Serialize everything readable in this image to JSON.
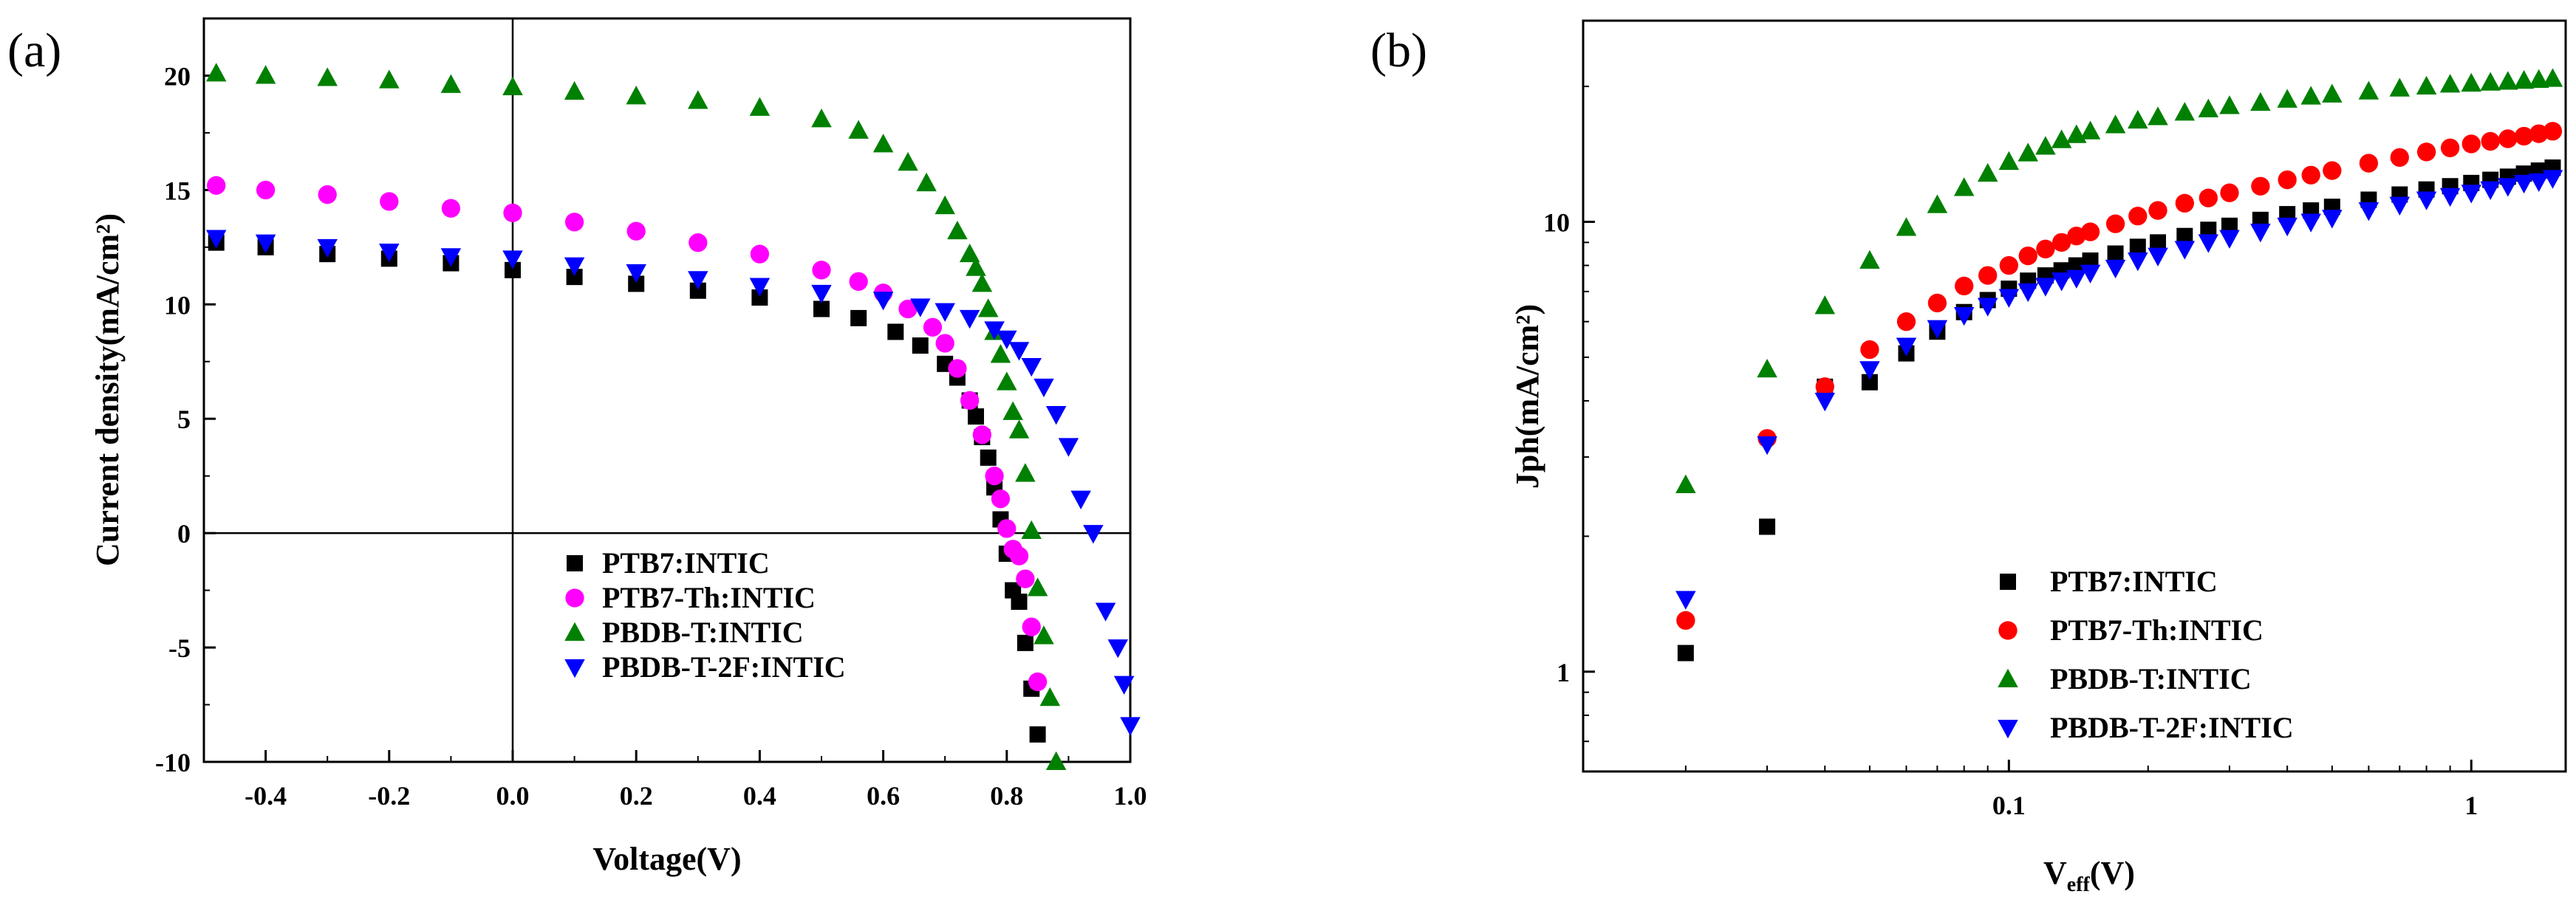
{
  "chart_data": [
    {
      "id": "a",
      "panel_label": "(a)",
      "type": "scatter",
      "xlabel": "Voltage(V)",
      "ylabel": "Current density(mA/cm²)",
      "xlim": [
        -0.5,
        1.0
      ],
      "ylim": [
        -10,
        22.5
      ],
      "xscale": "linear",
      "yscale": "linear",
      "xticks": [
        -0.4,
        -0.2,
        0.0,
        0.2,
        0.4,
        0.6,
        0.8,
        1.0
      ],
      "xticklabels": [
        "-0.4",
        "-0.2",
        "0.0",
        "0.2",
        "0.4",
        "0.6",
        "0.8",
        "1.0"
      ],
      "yticks": [
        -10,
        -5,
        0,
        5,
        10,
        15,
        20
      ],
      "yticklabels": [
        "-10",
        "-5",
        "0",
        "5",
        "10",
        "15",
        "20"
      ],
      "reference_lines": {
        "x": 0,
        "y": 0
      },
      "legend_position": "lower-right",
      "series": [
        {
          "name": "PTB7:INTIC",
          "marker": "square",
          "color": "#000000",
          "x": [
            -0.48,
            -0.4,
            -0.3,
            -0.2,
            -0.1,
            0.0,
            0.1,
            0.2,
            0.3,
            0.4,
            0.5,
            0.56,
            0.62,
            0.66,
            0.7,
            0.72,
            0.74,
            0.75,
            0.76,
            0.77,
            0.78,
            0.79,
            0.8,
            0.81,
            0.82,
            0.83,
            0.84,
            0.85
          ],
          "y": [
            12.7,
            12.5,
            12.2,
            12.0,
            11.8,
            11.5,
            11.2,
            10.9,
            10.6,
            10.3,
            9.8,
            9.4,
            8.8,
            8.2,
            7.4,
            6.8,
            5.8,
            5.1,
            4.2,
            3.3,
            2.0,
            0.6,
            -0.9,
            -2.5,
            -3.0,
            -4.8,
            -6.8,
            -8.8
          ]
        },
        {
          "name": "PTB7-Th:INTIC",
          "marker": "circle",
          "color": "#ff00ff",
          "x": [
            -0.48,
            -0.4,
            -0.3,
            -0.2,
            -0.1,
            0.0,
            0.1,
            0.2,
            0.3,
            0.4,
            0.5,
            0.56,
            0.6,
            0.64,
            0.68,
            0.7,
            0.72,
            0.74,
            0.76,
            0.78,
            0.79,
            0.8,
            0.81,
            0.82,
            0.83,
            0.84,
            0.85
          ],
          "y": [
            15.2,
            15.0,
            14.8,
            14.5,
            14.2,
            14.0,
            13.6,
            13.2,
            12.7,
            12.2,
            11.5,
            11.0,
            10.5,
            9.8,
            9.0,
            8.3,
            7.2,
            5.8,
            4.3,
            2.5,
            1.5,
            0.2,
            -0.7,
            -1.0,
            -2.0,
            -4.1,
            -6.5
          ]
        },
        {
          "name": "PBDB-T:INTIC",
          "marker": "triangle-up",
          "color": "#008000",
          "x": [
            -0.48,
            -0.4,
            -0.3,
            -0.2,
            -0.1,
            0.0,
            0.1,
            0.2,
            0.3,
            0.4,
            0.5,
            0.56,
            0.6,
            0.64,
            0.67,
            0.7,
            0.72,
            0.74,
            0.75,
            0.76,
            0.77,
            0.78,
            0.79,
            0.8,
            0.81,
            0.82,
            0.83,
            0.84,
            0.85,
            0.86,
            0.87,
            0.88
          ],
          "y": [
            20.1,
            20.0,
            19.9,
            19.8,
            19.6,
            19.5,
            19.3,
            19.1,
            18.9,
            18.6,
            18.1,
            17.6,
            17.0,
            16.2,
            15.3,
            14.3,
            13.2,
            12.2,
            11.6,
            10.9,
            9.8,
            8.8,
            7.8,
            6.6,
            5.3,
            4.5,
            2.6,
            0.1,
            -2.4,
            -4.5,
            -7.2,
            -10.0
          ]
        },
        {
          "name": "PBDB-T-2F:INTIC",
          "marker": "triangle-down",
          "color": "#0000ff",
          "x": [
            -0.48,
            -0.4,
            -0.3,
            -0.2,
            -0.1,
            0.0,
            0.1,
            0.2,
            0.3,
            0.4,
            0.5,
            0.6,
            0.66,
            0.7,
            0.74,
            0.78,
            0.8,
            0.82,
            0.84,
            0.86,
            0.88,
            0.9,
            0.92,
            0.94,
            0.96,
            0.98,
            0.99,
            1.0
          ],
          "y": [
            12.9,
            12.7,
            12.5,
            12.3,
            12.1,
            12.0,
            11.7,
            11.4,
            11.1,
            10.8,
            10.5,
            10.2,
            9.9,
            9.7,
            9.4,
            8.9,
            8.5,
            8.0,
            7.3,
            6.4,
            5.2,
            3.8,
            1.5,
            0.0,
            -3.4,
            -5.0,
            -6.6,
            -8.4
          ]
        }
      ]
    },
    {
      "id": "b",
      "panel_label": "(b)",
      "type": "scatter",
      "xlabel": "V_eff(V)",
      "ylabel": "Jph(mA/cm²)",
      "xlim": [
        0.012,
        1.6
      ],
      "ylim": [
        0.6,
        28
      ],
      "xscale": "log",
      "yscale": "log",
      "xticks": [
        0.1,
        1
      ],
      "xticklabels": [
        "0.1",
        "1"
      ],
      "yticks": [
        1,
        10
      ],
      "yticklabels": [
        "1",
        "10"
      ],
      "legend_position": "lower-right",
      "series": [
        {
          "name": "PTB7:INTIC",
          "marker": "square",
          "color": "#000000",
          "x": [
            0.02,
            0.03,
            0.04,
            0.05,
            0.06,
            0.07,
            0.08,
            0.09,
            0.1,
            0.11,
            0.12,
            0.13,
            0.14,
            0.15,
            0.17,
            0.19,
            0.21,
            0.24,
            0.27,
            0.3,
            0.35,
            0.4,
            0.45,
            0.5,
            0.6,
            0.7,
            0.8,
            0.9,
            1.0,
            1.1,
            1.2,
            1.3,
            1.4,
            1.5
          ],
          "y": [
            1.1,
            2.1,
            4.3,
            4.4,
            5.1,
            5.7,
            6.3,
            6.7,
            7.1,
            7.4,
            7.6,
            7.8,
            8.0,
            8.2,
            8.5,
            8.8,
            9.0,
            9.3,
            9.6,
            9.8,
            10.1,
            10.4,
            10.6,
            10.8,
            11.2,
            11.5,
            11.8,
            12.0,
            12.2,
            12.4,
            12.6,
            12.8,
            13.0,
            13.2
          ]
        },
        {
          "name": "PTB7-Th:INTIC",
          "marker": "circle",
          "color": "#ff0000",
          "x": [
            0.02,
            0.03,
            0.04,
            0.05,
            0.06,
            0.07,
            0.08,
            0.09,
            0.1,
            0.11,
            0.12,
            0.13,
            0.14,
            0.15,
            0.17,
            0.19,
            0.21,
            0.24,
            0.27,
            0.3,
            0.35,
            0.4,
            0.45,
            0.5,
            0.6,
            0.7,
            0.8,
            0.9,
            1.0,
            1.1,
            1.2,
            1.3,
            1.4,
            1.5
          ],
          "y": [
            1.3,
            3.3,
            4.3,
            5.2,
            6.0,
            6.6,
            7.2,
            7.6,
            8.0,
            8.4,
            8.7,
            9.0,
            9.3,
            9.5,
            9.9,
            10.3,
            10.6,
            11.0,
            11.3,
            11.6,
            12.0,
            12.4,
            12.7,
            13.0,
            13.5,
            13.9,
            14.3,
            14.6,
            14.9,
            15.1,
            15.3,
            15.5,
            15.7,
            15.9
          ]
        },
        {
          "name": "PBDB-T:INTIC",
          "marker": "triangle-up",
          "color": "#008000",
          "x": [
            0.02,
            0.03,
            0.04,
            0.05,
            0.06,
            0.07,
            0.08,
            0.09,
            0.1,
            0.11,
            0.12,
            0.13,
            0.14,
            0.15,
            0.17,
            0.19,
            0.21,
            0.24,
            0.27,
            0.3,
            0.35,
            0.4,
            0.45,
            0.5,
            0.6,
            0.7,
            0.8,
            0.9,
            1.0,
            1.1,
            1.2,
            1.3,
            1.4,
            1.5
          ],
          "y": [
            2.6,
            4.7,
            6.5,
            8.2,
            9.7,
            10.9,
            11.9,
            12.8,
            13.6,
            14.2,
            14.7,
            15.2,
            15.6,
            15.9,
            16.4,
            16.8,
            17.1,
            17.5,
            17.8,
            18.1,
            18.4,
            18.7,
            19.0,
            19.2,
            19.5,
            19.8,
            20.0,
            20.2,
            20.3,
            20.4,
            20.5,
            20.6,
            20.7,
            20.8
          ]
        },
        {
          "name": "PBDB-T-2F:INTIC",
          "marker": "triangle-down",
          "color": "#0000ff",
          "x": [
            0.02,
            0.03,
            0.04,
            0.05,
            0.06,
            0.07,
            0.08,
            0.09,
            0.1,
            0.11,
            0.12,
            0.13,
            0.14,
            0.15,
            0.17,
            0.19,
            0.21,
            0.24,
            0.27,
            0.3,
            0.35,
            0.4,
            0.45,
            0.5,
            0.6,
            0.7,
            0.8,
            0.9,
            1.0,
            1.1,
            1.2,
            1.3,
            1.4,
            1.5
          ],
          "y": [
            1.45,
            3.2,
            4.0,
            4.7,
            5.3,
            5.8,
            6.2,
            6.5,
            6.8,
            7.0,
            7.2,
            7.4,
            7.5,
            7.7,
            7.9,
            8.2,
            8.4,
            8.7,
            9.0,
            9.2,
            9.5,
            9.8,
            10.0,
            10.2,
            10.6,
            10.9,
            11.2,
            11.4,
            11.6,
            11.8,
            12.0,
            12.2,
            12.3,
            12.5
          ]
        }
      ]
    }
  ]
}
